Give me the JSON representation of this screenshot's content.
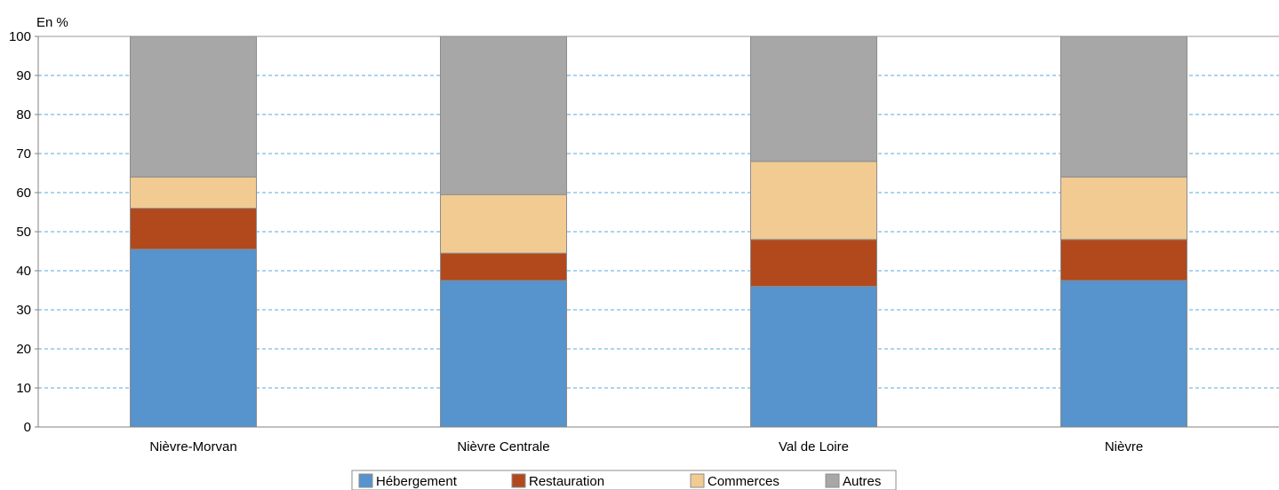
{
  "chart_data": {
    "type": "bar",
    "stacked": true,
    "unit_label": "En %",
    "categories": [
      "Nièvre-Morvan",
      "Nièvre Centrale",
      "Val de Loire",
      "Nièvre"
    ],
    "series": [
      {
        "name": "Hébergement",
        "color": "#5793cc",
        "values": [
          45.5,
          37.5,
          36,
          37.5
        ]
      },
      {
        "name": "Restauration",
        "color": "#b1491d",
        "values": [
          10.5,
          7,
          12,
          10.5
        ]
      },
      {
        "name": "Commerces",
        "color": "#f2cb93",
        "values": [
          8,
          15,
          20,
          16
        ]
      },
      {
        "name": "Autres",
        "color": "#a7a7a7",
        "values": [
          36,
          40.5,
          32,
          36
        ]
      }
    ],
    "ylim": [
      0,
      100
    ],
    "yticks": [
      0,
      10,
      20,
      30,
      40,
      50,
      60,
      70,
      80,
      90,
      100
    ],
    "grid": true,
    "grid_color": "#5aaadc",
    "legend_position": "bottom-center"
  }
}
